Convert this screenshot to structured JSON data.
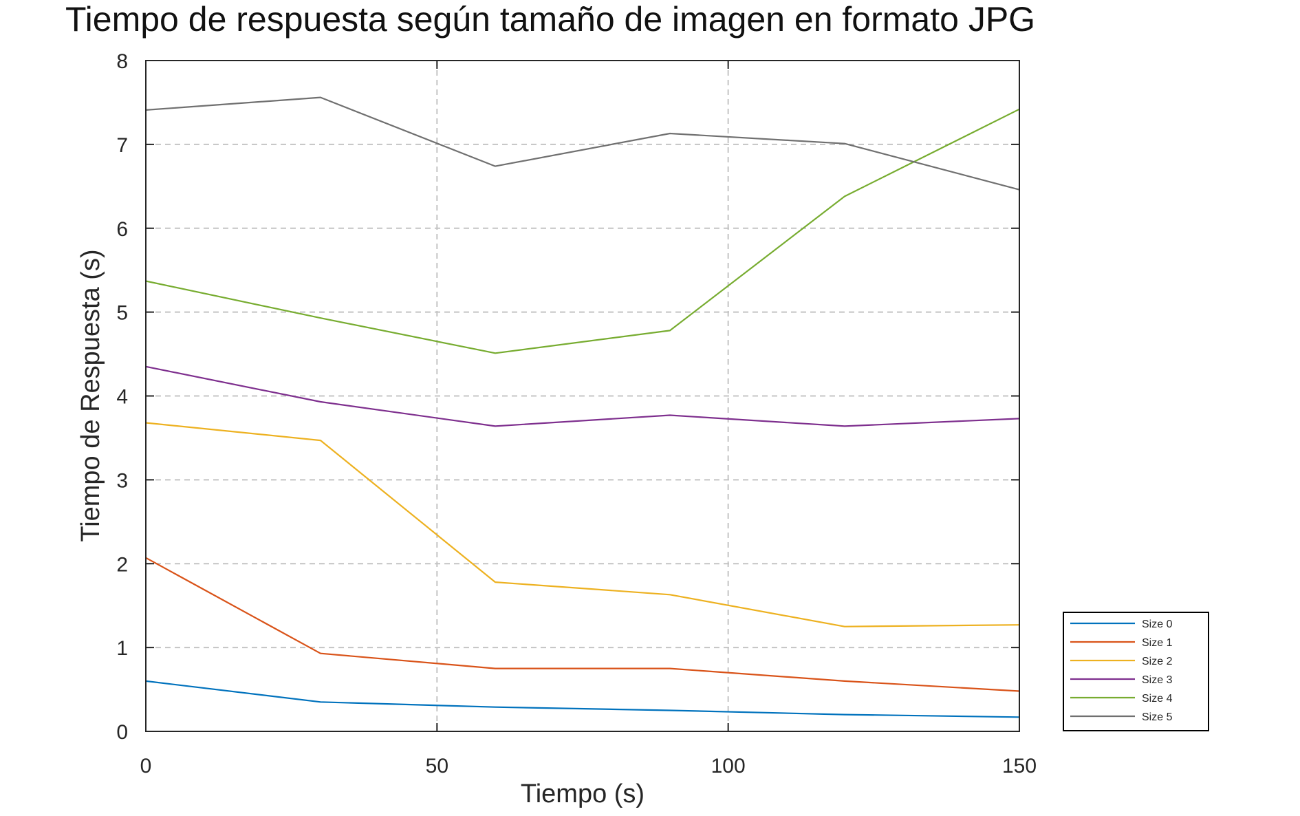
{
  "chart_data": {
    "type": "line",
    "title": "Tiempo de respuesta según tamaño de imagen en formato JPG",
    "xlabel": "Tiempo (s)",
    "ylabel": "Tiempo de Respuesta (s)",
    "xlim": [
      0,
      150
    ],
    "ylim": [
      0,
      8
    ],
    "xticks": [
      0,
      50,
      100,
      150
    ],
    "yticks": [
      0,
      1,
      2,
      3,
      4,
      5,
      6,
      7,
      8
    ],
    "grid": true,
    "legend_position": "bottom-right, outside plot",
    "x": [
      0,
      30,
      60,
      90,
      120,
      150
    ],
    "series": [
      {
        "name": "Size 0",
        "color": "#0072BD",
        "values": [
          0.6,
          0.35,
          0.29,
          0.25,
          0.2,
          0.17
        ]
      },
      {
        "name": "Size 1",
        "color": "#D95319",
        "values": [
          2.07,
          0.93,
          0.75,
          0.75,
          0.6,
          0.48
        ]
      },
      {
        "name": "Size 2",
        "color": "#EDB120",
        "values": [
          3.68,
          3.47,
          1.78,
          1.63,
          1.25,
          1.27
        ]
      },
      {
        "name": "Size 3",
        "color": "#7E2F8E",
        "values": [
          4.35,
          3.93,
          3.64,
          3.77,
          3.64,
          3.73
        ]
      },
      {
        "name": "Size 4",
        "color": "#77AC30",
        "values": [
          5.37,
          4.93,
          4.51,
          4.78,
          6.38,
          7.42
        ]
      },
      {
        "name": "Size 5",
        "color": "#707070",
        "values": [
          7.41,
          7.56,
          6.74,
          7.13,
          7.01,
          6.46
        ]
      }
    ]
  }
}
